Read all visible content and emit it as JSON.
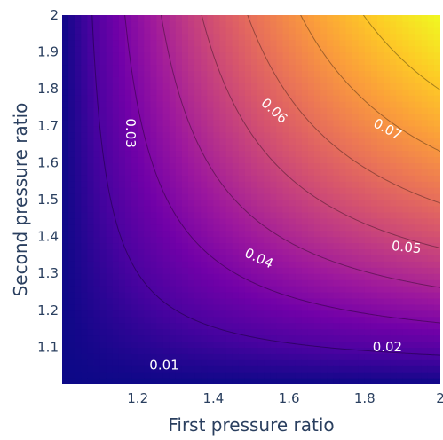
{
  "chart_data": {
    "type": "heatmap",
    "subtype": "contour",
    "xlabel": "First pressure ratio",
    "ylabel": "Second pressure ratio",
    "xlim": [
      1.0,
      2.0
    ],
    "ylim": [
      1.0,
      2.0
    ],
    "x_ticks": [
      {
        "value": 1.2,
        "label": "1.2"
      },
      {
        "value": 1.4,
        "label": "1.4"
      },
      {
        "value": 1.6,
        "label": "1.6"
      },
      {
        "value": 1.8,
        "label": "1.8"
      },
      {
        "value": 2.0,
        "label": "2"
      }
    ],
    "y_ticks": [
      {
        "value": 1.1,
        "label": "1.1"
      },
      {
        "value": 1.2,
        "label": "1.2"
      },
      {
        "value": 1.3,
        "label": "1.3"
      },
      {
        "value": 1.4,
        "label": "1.4"
      },
      {
        "value": 1.5,
        "label": "1.5"
      },
      {
        "value": 1.6,
        "label": "1.6"
      },
      {
        "value": 1.7,
        "label": "1.7"
      },
      {
        "value": 1.8,
        "label": "1.8"
      },
      {
        "value": 1.9,
        "label": "1.9"
      },
      {
        "value": 2.0,
        "label": "2"
      }
    ],
    "z_range": [
      0,
      0.08
    ],
    "contour_levels": [
      0.01,
      0.02,
      0.03,
      0.04,
      0.05,
      0.06,
      0.07
    ],
    "contour_labels": [
      {
        "text": "0.01",
        "x": 1.27,
        "y": 1.05,
        "angle": 0
      },
      {
        "text": "0.02",
        "x": 1.86,
        "y": 1.1,
        "angle": 0
      },
      {
        "text": "0.03",
        "x": 1.18,
        "y": 1.68,
        "angle": 90
      },
      {
        "text": "0.04",
        "x": 1.52,
        "y": 1.34,
        "angle": 25
      },
      {
        "text": "0.05",
        "x": 1.91,
        "y": 1.37,
        "angle": 6
      },
      {
        "text": "0.06",
        "x": 1.56,
        "y": 1.74,
        "angle": 42
      },
      {
        "text": "0.07",
        "x": 1.86,
        "y": 1.69,
        "angle": 28
      }
    ],
    "colorscale": [
      "#0d0887",
      "#46039f",
      "#7201a8",
      "#9c179e",
      "#bd3786",
      "#d8576b",
      "#ed7953",
      "#fb9f3a",
      "#fdca26",
      "#f0f921"
    ],
    "legend": "none",
    "grid": false
  }
}
